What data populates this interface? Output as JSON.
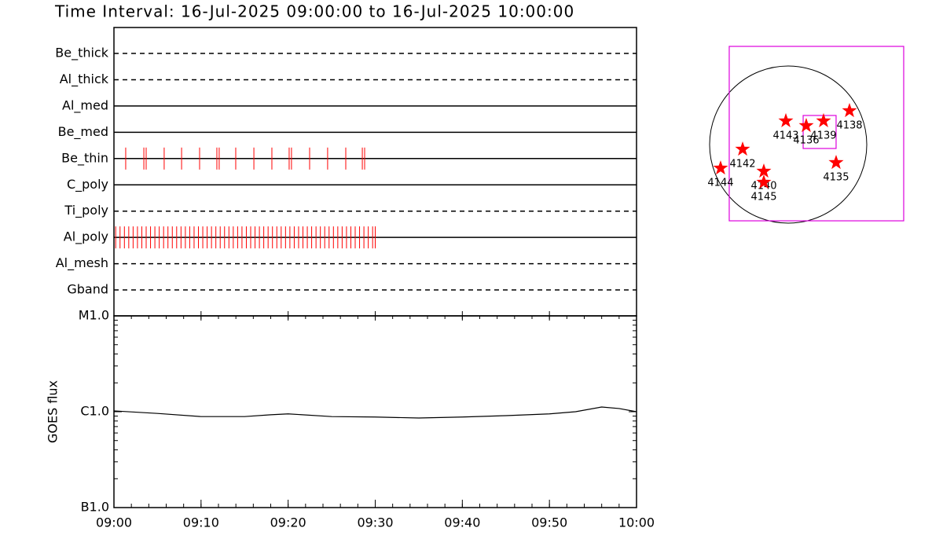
{
  "chart_data": [
    {
      "type": "timeline",
      "title": "Time Interval: 16-Jul-2025 09:00:00 to 16-Jul-2025 10:00:00",
      "xlim": [
        "09:00",
        "10:00"
      ],
      "color": "#ff0000",
      "rows": [
        {
          "name": "Be_thick",
          "style": "dashed",
          "events": []
        },
        {
          "name": "Al_thick",
          "style": "dashed",
          "events": []
        },
        {
          "name": "Al_med",
          "style": "solid",
          "events": []
        },
        {
          "name": "Be_med",
          "style": "solid",
          "events": []
        },
        {
          "name": "Be_thin",
          "style": "solid",
          "events": [
            "09:01:21",
            "09:03:26",
            "09:03:42",
            "09:05:46",
            "09:07:46",
            "09:09:50",
            "09:11:49",
            "09:12:05",
            "09:13:59",
            "09:16:04",
            "09:18:08",
            "09:20:07",
            "09:20:23",
            "09:22:28",
            "09:24:32",
            "09:26:37",
            "09:28:31",
            "09:28:47"
          ]
        },
        {
          "name": "C_poly",
          "style": "solid",
          "events": []
        },
        {
          "name": "Ti_poly",
          "style": "dashed",
          "events": []
        },
        {
          "name": "Al_poly",
          "style": "solid",
          "events": [
            "09:00:12",
            "09:00:42",
            "09:01:12",
            "09:01:42",
            "09:02:12",
            "09:02:42",
            "09:03:12",
            "09:03:42",
            "09:04:12",
            "09:04:42",
            "09:05:12",
            "09:05:42",
            "09:06:12",
            "09:06:42",
            "09:07:12",
            "09:07:42",
            "09:08:12",
            "09:08:42",
            "09:09:12",
            "09:09:42",
            "09:10:12",
            "09:10:42",
            "09:11:12",
            "09:11:42",
            "09:12:12",
            "09:12:42",
            "09:13:12",
            "09:13:42",
            "09:14:12",
            "09:14:42",
            "09:15:12",
            "09:15:42",
            "09:16:12",
            "09:16:42",
            "09:17:12",
            "09:17:42",
            "09:18:12",
            "09:18:42",
            "09:19:12",
            "09:19:42",
            "09:20:12",
            "09:20:42",
            "09:21:12",
            "09:21:42",
            "09:22:12",
            "09:22:42",
            "09:23:12",
            "09:23:42",
            "09:24:12",
            "09:24:42",
            "09:25:12",
            "09:25:42",
            "09:26:12",
            "09:26:42",
            "09:27:12",
            "09:27:42",
            "09:28:12",
            "09:28:42",
            "09:29:12",
            "09:29:42",
            "09:30:00"
          ]
        },
        {
          "name": "Al_mesh",
          "style": "dashed",
          "events": []
        },
        {
          "name": "Gband",
          "style": "dashed",
          "events": []
        }
      ]
    },
    {
      "type": "line",
      "ylabel": "GOES flux",
      "log_y": true,
      "color": "#000000",
      "xlim": [
        "09:00",
        "10:00"
      ],
      "xticks": [
        "09:00",
        "09:10",
        "09:20",
        "09:30",
        "09:40",
        "09:50",
        "10:00"
      ],
      "ylim": [
        1e-07,
        1e-05
      ],
      "yticks": [
        {
          "value": 1e-07,
          "label": "B1.0"
        },
        {
          "value": 1e-06,
          "label": "C1.0"
        },
        {
          "value": 1e-05,
          "label": "M1.0"
        }
      ],
      "x": [
        "09:00",
        "09:05",
        "09:10",
        "09:15",
        "09:18",
        "09:20",
        "09:25",
        "09:30",
        "09:35",
        "09:40",
        "09:45",
        "09:50",
        "09:53",
        "09:56",
        "09:58",
        "10:00"
      ],
      "values": [
        1.02e-06,
        9.6e-07,
        8.9e-07,
        8.9e-07,
        9.3e-07,
        9.5e-07,
        8.9e-07,
        8.8e-07,
        8.6e-07,
        8.8e-07,
        9.1e-07,
        9.5e-07,
        1e-06,
        1.12e-06,
        1.08e-06,
        1e-06
      ]
    },
    {
      "type": "map",
      "solar_radius": 945,
      "marker_color": "#ff0000",
      "box_color": "#dd00dd",
      "boxes": [
        {
          "xlim": [
            -709,
            1389
          ],
          "ylim": [
            -917,
            1181
          ]
        },
        {
          "xlim": [
            180,
            576
          ],
          "ylim": [
            -47,
            350
          ]
        }
      ],
      "points": [
        {
          "label": "4143",
          "x": -28,
          "y": 284
        },
        {
          "label": "4136",
          "x": 217,
          "y": 227
        },
        {
          "label": "4139",
          "x": 425,
          "y": 284
        },
        {
          "label": "4138",
          "x": 737,
          "y": 406
        },
        {
          "label": "4142",
          "x": -548,
          "y": -57
        },
        {
          "label": "4144",
          "x": -813,
          "y": -284
        },
        {
          "label": "4140",
          "x": -293,
          "y": -321
        },
        {
          "label": "4145",
          "x": -293,
          "y": -454
        },
        {
          "label": "4135",
          "x": 576,
          "y": -217
        }
      ]
    }
  ]
}
